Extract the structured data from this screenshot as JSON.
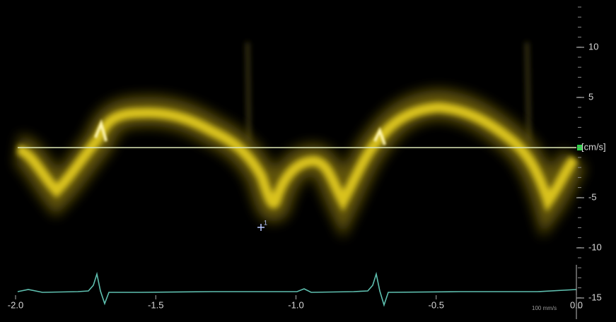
{
  "axes": {
    "y_ticks": [
      10,
      5,
      -5,
      -10,
      -15
    ],
    "y_unit": "[cm/s]",
    "x_ticks": [
      "-2.0",
      "-1.5",
      "-1.0",
      "-0.5",
      "0.0"
    ]
  },
  "sweep_speed": "100 mm/s",
  "marker": "1"
}
